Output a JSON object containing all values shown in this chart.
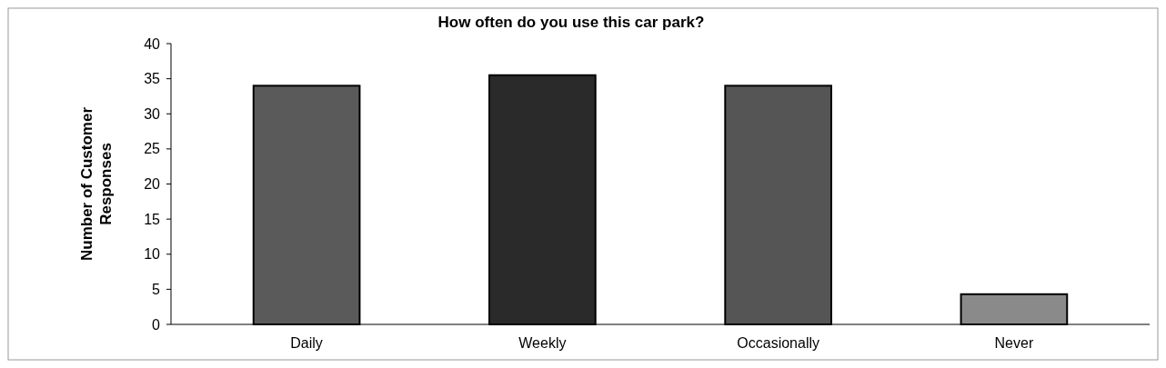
{
  "chart_data": {
    "type": "bar",
    "title": "How often do you use this car park?",
    "ylabel": "Number of Customer Responses",
    "categories": [
      "Daily",
      "Weekly",
      "Occasionally",
      "Never"
    ],
    "values": [
      34,
      35.5,
      34,
      4.3
    ],
    "colors": [
      "#5a5a5a",
      "#2a2a2a",
      "#555555",
      "#8a8a8a"
    ],
    "ylim": [
      0,
      40
    ],
    "yticks": [
      0,
      5,
      10,
      15,
      20,
      25,
      30,
      35,
      40
    ]
  }
}
